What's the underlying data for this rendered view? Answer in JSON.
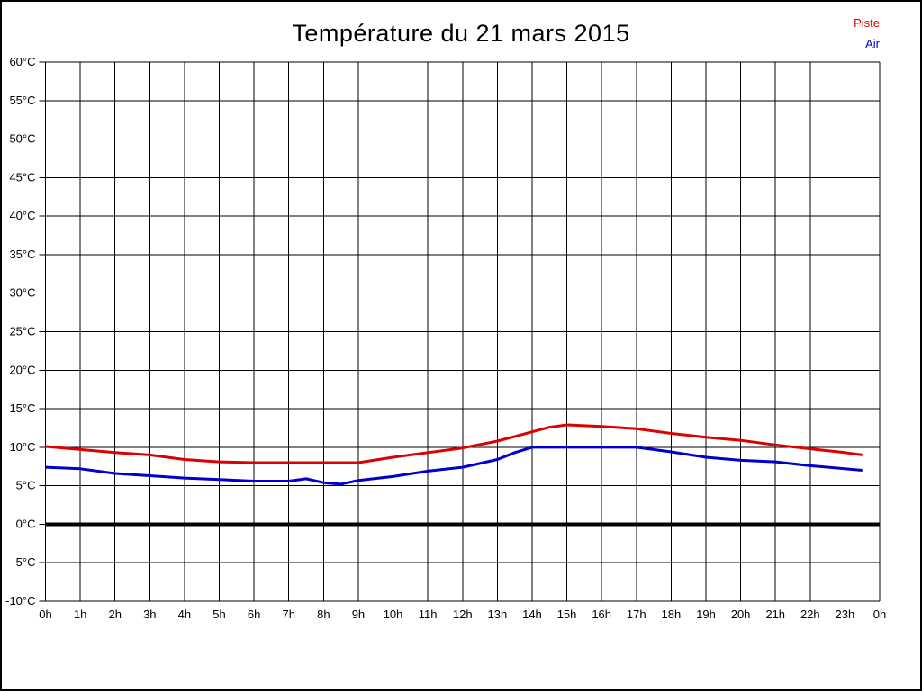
{
  "page": {
    "background": "#ffffff",
    "border_color": "#000000"
  },
  "header": {
    "title": "Température du 21 mars 2015"
  },
  "legend": {
    "items": [
      {
        "label": "Piste",
        "color": "#dd0000"
      },
      {
        "label": "Air",
        "color": "#0000cc"
      }
    ]
  },
  "chart_data": {
    "type": "line",
    "title": "Température du 21 mars 2015",
    "xlabel": "",
    "ylabel": "",
    "x_unit": "hour",
    "xlim": [
      0,
      24
    ],
    "ylim": [
      -10,
      60
    ],
    "x_tick_step": 1,
    "y_tick_step": 5,
    "grid": true,
    "legend_position": "top-right",
    "x_tick_labels": [
      "0h",
      "1h",
      "2h",
      "3h",
      "4h",
      "5h",
      "6h",
      "7h",
      "8h",
      "9h",
      "10h",
      "11h",
      "12h",
      "13h",
      "14h",
      "15h",
      "16h",
      "17h",
      "18h",
      "19h",
      "20h",
      "21h",
      "22h",
      "23h",
      "0h"
    ],
    "y_tick_labels": [
      "60°C",
      "55°C",
      "50°C",
      "45°C",
      "40°C",
      "35°C",
      "30°C",
      "25°C",
      "20°C",
      "15°C",
      "10°C",
      "5°C",
      "0°C",
      "-5°C",
      "-10°C"
    ],
    "zero_line": {
      "value": 0,
      "color": "#000000",
      "width": 4
    },
    "x": [
      0,
      1,
      2,
      3,
      4,
      5,
      6,
      7,
      7.5,
      8,
      8.5,
      9,
      10,
      11,
      12,
      13,
      13.5,
      14,
      14.5,
      15,
      16,
      17,
      18,
      19,
      20,
      21,
      22,
      23,
      23.5
    ],
    "series": [
      {
        "name": "Piste",
        "color": "#dd0000",
        "values": [
          10.1,
          9.7,
          9.3,
          9.0,
          8.4,
          8.1,
          8.0,
          8.0,
          8.0,
          8.0,
          8.0,
          8.0,
          8.7,
          9.3,
          9.9,
          10.8,
          11.4,
          12.0,
          12.6,
          12.9,
          12.7,
          12.4,
          11.8,
          11.3,
          10.9,
          10.3,
          9.8,
          9.3,
          9.0
        ]
      },
      {
        "name": "Air",
        "color": "#0000cc",
        "values": [
          7.4,
          7.2,
          6.6,
          6.3,
          6.0,
          5.8,
          5.6,
          5.6,
          5.9,
          5.4,
          5.2,
          5.7,
          6.2,
          6.9,
          7.4,
          8.4,
          9.3,
          10.0,
          10.0,
          10.0,
          10.0,
          10.0,
          9.4,
          8.7,
          8.3,
          8.1,
          7.6,
          7.2,
          7.0
        ]
      }
    ]
  }
}
